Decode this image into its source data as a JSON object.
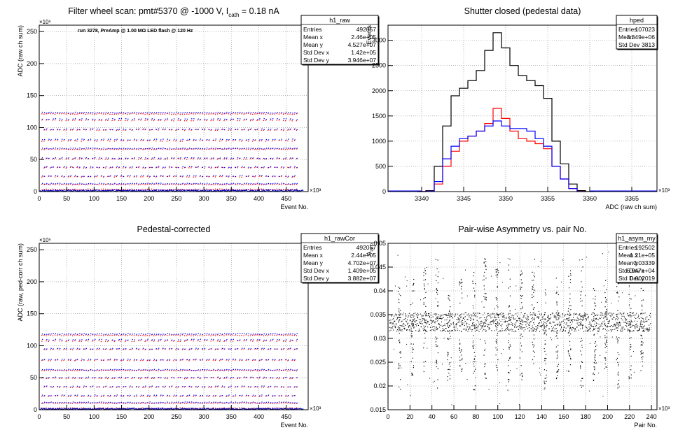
{
  "chart_data": [
    {
      "id": "raw",
      "type": "scatter",
      "title": "Filter wheel scan: pmt#5370 @ -1000 V, I",
      "title_sub": "cath",
      "title_tail": " = 0.18 nA",
      "annotation": "run 3278, PreAmp @ 1.00 MΩ LED flash @  120 Hz",
      "xlabel": "Event No.",
      "ylabel": "ADC (raw ch sum)",
      "x_multiplier": "×10³",
      "y_multiplier": "×10⁶",
      "xlim": [
        0,
        490
      ],
      "ylim": [
        0,
        260
      ],
      "xticks": [
        0,
        50,
        100,
        150,
        200,
        250,
        300,
        350,
        400,
        450
      ],
      "yticks": [
        0,
        50,
        100,
        150,
        200,
        250
      ],
      "grid": true,
      "series": [
        {
          "color": "#ff0000",
          "levels": [
            122,
            112,
            97,
            80,
            67,
            52,
            38,
            24,
            12,
            4
          ]
        },
        {
          "color": "#0000ff",
          "levels": [
            124,
            114,
            98,
            82,
            68,
            53,
            39,
            25,
            13,
            3
          ]
        }
      ],
      "stats": {
        "name": "h1_raw",
        "rows": [
          [
            "Entries",
            "492057"
          ],
          [
            "Mean x",
            "2.46e+05"
          ],
          [
            "Mean y",
            "4.527e+07"
          ],
          [
            "Std Dev x",
            "1.42e+05"
          ],
          [
            "Std Dev y",
            "3.946e+07"
          ]
        ]
      }
    },
    {
      "id": "ped",
      "type": "line",
      "title": "Shutter closed (pedestal data)",
      "xlabel": "ADC (raw ch sum)",
      "ylabel": "Events",
      "x_multiplier": "×10³",
      "xlim": [
        3336,
        3368
      ],
      "ylim": [
        0,
        3300
      ],
      "xticks": [
        3340,
        3345,
        3350,
        3355,
        3360,
        3365
      ],
      "yticks": [
        0,
        500,
        1000,
        1500,
        2000,
        2500,
        3000
      ],
      "grid": true,
      "series": [
        {
          "color": "#000000",
          "points": [
            [
              3340,
              0
            ],
            [
              3341,
              20
            ],
            [
              3342,
              500
            ],
            [
              3343,
              1300
            ],
            [
              3344,
              1900
            ],
            [
              3345,
              2050
            ],
            [
              3346,
              2200
            ],
            [
              3347,
              2400
            ],
            [
              3348,
              2800
            ],
            [
              3349,
              3150
            ],
            [
              3350,
              2850
            ],
            [
              3351,
              2500
            ],
            [
              3352,
              2300
            ],
            [
              3353,
              2200
            ],
            [
              3354,
              2100
            ],
            [
              3355,
              1850
            ],
            [
              3356,
              1000
            ],
            [
              3357,
              550
            ],
            [
              3358,
              150
            ],
            [
              3359,
              20
            ],
            [
              3360,
              0
            ]
          ]
        },
        {
          "color": "#ff0000",
          "points": [
            [
              3340,
              0
            ],
            [
              3341,
              10
            ],
            [
              3342,
              150
            ],
            [
              3343,
              500
            ],
            [
              3344,
              800
            ],
            [
              3345,
              1000
            ],
            [
              3346,
              1100
            ],
            [
              3347,
              1200
            ],
            [
              3348,
              1350
            ],
            [
              3349,
              1650
            ],
            [
              3350,
              1450
            ],
            [
              3351,
              1200
            ],
            [
              3352,
              1050
            ],
            [
              3353,
              1000
            ],
            [
              3354,
              950
            ],
            [
              3355,
              850
            ],
            [
              3356,
              500
            ],
            [
              3357,
              250
            ],
            [
              3358,
              60
            ],
            [
              3359,
              0
            ]
          ]
        },
        {
          "color": "#0000ff",
          "points": [
            [
              3340,
              0
            ],
            [
              3341,
              10
            ],
            [
              3342,
              200
            ],
            [
              3343,
              650
            ],
            [
              3344,
              900
            ],
            [
              3345,
              1050
            ],
            [
              3346,
              1100
            ],
            [
              3347,
              1200
            ],
            [
              3348,
              1300
            ],
            [
              3349,
              1400
            ],
            [
              3350,
              1300
            ],
            [
              3351,
              1250
            ],
            [
              3352,
              1250
            ],
            [
              3353,
              1200
            ],
            [
              3354,
              1050
            ],
            [
              3355,
              900
            ],
            [
              3356,
              500
            ],
            [
              3357,
              250
            ],
            [
              3358,
              60
            ],
            [
              3359,
              0
            ]
          ]
        }
      ],
      "stats": {
        "name": "hped",
        "rows": [
          [
            "Entries",
            "107023"
          ],
          [
            "Mean",
            "3.349e+06"
          ],
          [
            "Std Dev",
            "3813"
          ]
        ]
      }
    },
    {
      "id": "rawcor",
      "type": "scatter",
      "title": "Pedestal-corrected",
      "xlabel": "Event No.",
      "ylabel": "ADC (raw, ped-corr ch sum)",
      "x_multiplier": "×10³",
      "y_multiplier": "×10⁶",
      "xlim": [
        0,
        490
      ],
      "ylim": [
        0,
        260
      ],
      "xticks": [
        0,
        50,
        100,
        150,
        200,
        250,
        300,
        350,
        400,
        450
      ],
      "yticks": [
        0,
        50,
        100,
        150,
        200,
        250
      ],
      "grid": true,
      "series": [
        {
          "color": "#ff0000",
          "levels": [
            117,
            108,
            95,
            78,
            62,
            50,
            36,
            22,
            11,
            3
          ]
        },
        {
          "color": "#0000ff",
          "levels": [
            119,
            110,
            96,
            79,
            63,
            51,
            37,
            23,
            12,
            2
          ]
        }
      ],
      "stats": {
        "name": "h1_rawCor",
        "rows": [
          [
            "Entries",
            "492057"
          ],
          [
            "Mean x",
            "2.44e+05"
          ],
          [
            "Mean y",
            "4.702e+07"
          ],
          [
            "Std Dev x",
            "1.409e+05"
          ],
          [
            "Std Dev y",
            "3.882e+07"
          ]
        ]
      }
    },
    {
      "id": "asym",
      "type": "scatter",
      "title": "Pair-wise Asymmetry vs. pair No.",
      "xlabel": "Pair No.",
      "ylabel": "A",
      "ylabel_sub": "LED",
      "x_multiplier": "×10³",
      "xlim": [
        0,
        245
      ],
      "ylim": [
        0.015,
        0.05
      ],
      "xticks": [
        0,
        20,
        40,
        60,
        80,
        100,
        120,
        140,
        160,
        180,
        200,
        220,
        240
      ],
      "yticks": [
        0.015,
        0.02,
        0.025,
        0.03,
        0.035,
        0.04,
        0.045,
        0.05
      ],
      "band": [
        0.0315,
        0.0355
      ],
      "spikes": [
        10,
        22,
        33,
        44,
        55,
        66,
        78,
        88,
        99,
        110,
        121,
        132,
        143,
        154,
        165,
        176,
        188,
        198,
        209,
        220,
        231
      ],
      "grid": true,
      "series": [
        {
          "color": "#000000"
        }
      ],
      "stats": {
        "name": "h1_asym_my",
        "rows": [
          [
            "Entries",
            "192502"
          ],
          [
            "Mean x",
            "1.21e+05"
          ],
          [
            "Mean y",
            "0.03339"
          ],
          [
            "Std Dev x",
            "6.947e+04"
          ],
          [
            "Std Dev y",
            "0.002019"
          ]
        ]
      }
    }
  ]
}
